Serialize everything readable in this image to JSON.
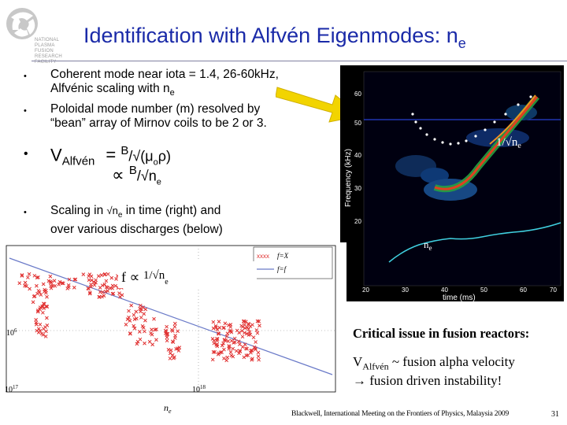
{
  "logo": {
    "name": "university-logo",
    "text_lines": [
      "NATIONAL",
      "PLASMA",
      "FUSION",
      "RESEARCH",
      "FACILITY"
    ]
  },
  "title": {
    "main": "Identification with Alfvén Eigenmodes: n",
    "subscript": "e"
  },
  "bullets": {
    "b1_line1": "Coherent mode near iota = 1.4, 26-60kHz,",
    "b1_line2": "Alfvénic scaling with n",
    "b1_line2_sub": "e",
    "b2_line1": "Poloidal mode number (m) resolved by",
    "b2_line2": "“bean” array of Mirnov coils to be 2 or 3.",
    "b3_v": "V",
    "b3_alf": "Alfvén",
    "b3_eq": "= ",
    "b3_B1": "B",
    "b3_rhs1": "/√(μ",
    "b3_o": "o",
    "b3_rho": "ρ)",
    "b3_prop": "∝ ",
    "b3_B2": "B",
    "b3_rhs2": "/√n",
    "b3_e": "e",
    "b4_line1a": "Scaling in ",
    "b4_sqrt": "√n",
    "b4_e": "e",
    "b4_line1b": " in time (right) and",
    "b4_line2": "over various discharges (below)",
    "bullet_symbol": "•"
  },
  "spectrogram": {
    "ylabel": "Frequency (kHz)",
    "xlabel": "time (ms)",
    "y_ticks": [
      "20",
      "30",
      "40",
      "50",
      "60"
    ],
    "x_ticks": [
      "20",
      "30",
      "40",
      "50",
      "60",
      "70"
    ],
    "annot_inv": "1/√n",
    "annot_inv_sub": "e",
    "annot_ne": "n",
    "annot_ne_sub": "e"
  },
  "scatter": {
    "y_tick": "10",
    "y_tick_exp": "6",
    "x_tick1": "10",
    "x_tick1_exp": "17",
    "x_tick2": "10",
    "x_tick2_exp": "18",
    "xlabel": "n",
    "xlabel_sub": "e",
    "annot_f": "f ∝ ",
    "annot_frac": "1/√n",
    "annot_frac_sub": "e",
    "legend1": "f=X",
    "legend2": "f=f"
  },
  "critical": "Critical issue in fusion reactors:",
  "valf_v": "V",
  "valf_sub": "Alfvén",
  "valf_rest": " ~ fusion alpha velocity",
  "instab": "→ fusion driven instability!",
  "footer": "Blackwell, International Meeting on the Frontiers of Physics, Malaysia 2009",
  "page_number": "31",
  "colors": {
    "title": "#1a2aa8",
    "arrow": "#f2d400",
    "scatter_points": "#e03030",
    "fit_line": "#6a7ac8"
  }
}
